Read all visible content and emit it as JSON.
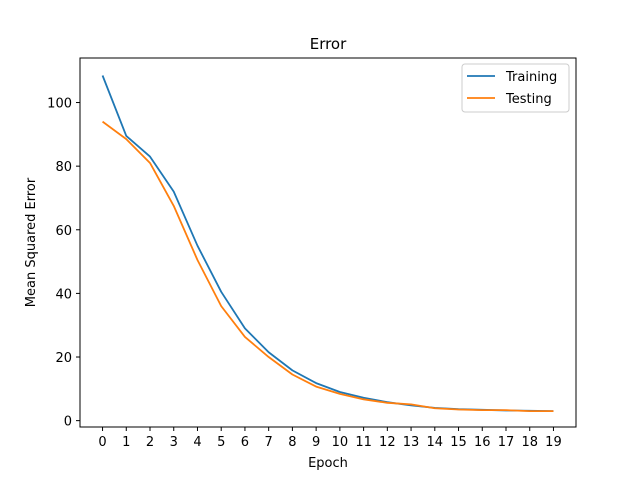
{
  "chart_data": {
    "type": "line",
    "title": "Error",
    "xlabel": "Epoch",
    "ylabel": "Mean Squared Error",
    "x": [
      0,
      1,
      2,
      3,
      4,
      5,
      6,
      7,
      8,
      9,
      10,
      11,
      12,
      13,
      14,
      15,
      16,
      17,
      18,
      19
    ],
    "xlim": [
      -0.95,
      19.95
    ],
    "ylim": [
      -2,
      114
    ],
    "yticks": [
      0,
      20,
      40,
      60,
      80,
      100
    ],
    "grid": false,
    "legend_position": "top-right",
    "series": [
      {
        "name": "Training",
        "color": "#1f77b4",
        "values": [
          108.5,
          89.5,
          83,
          72,
          55,
          40.5,
          29,
          21.5,
          15.8,
          11.8,
          9,
          7.2,
          5.8,
          4.8,
          4,
          3.6,
          3.4,
          3.2,
          3.1,
          3
        ]
      },
      {
        "name": "Testing",
        "color": "#ff7f0e",
        "values": [
          94,
          88.5,
          81,
          67.5,
          50.5,
          36,
          26.3,
          20,
          14.5,
          10.7,
          8.4,
          6.7,
          5.6,
          5.1,
          3.9,
          3.5,
          3.3,
          3.3,
          3,
          3
        ]
      }
    ]
  }
}
